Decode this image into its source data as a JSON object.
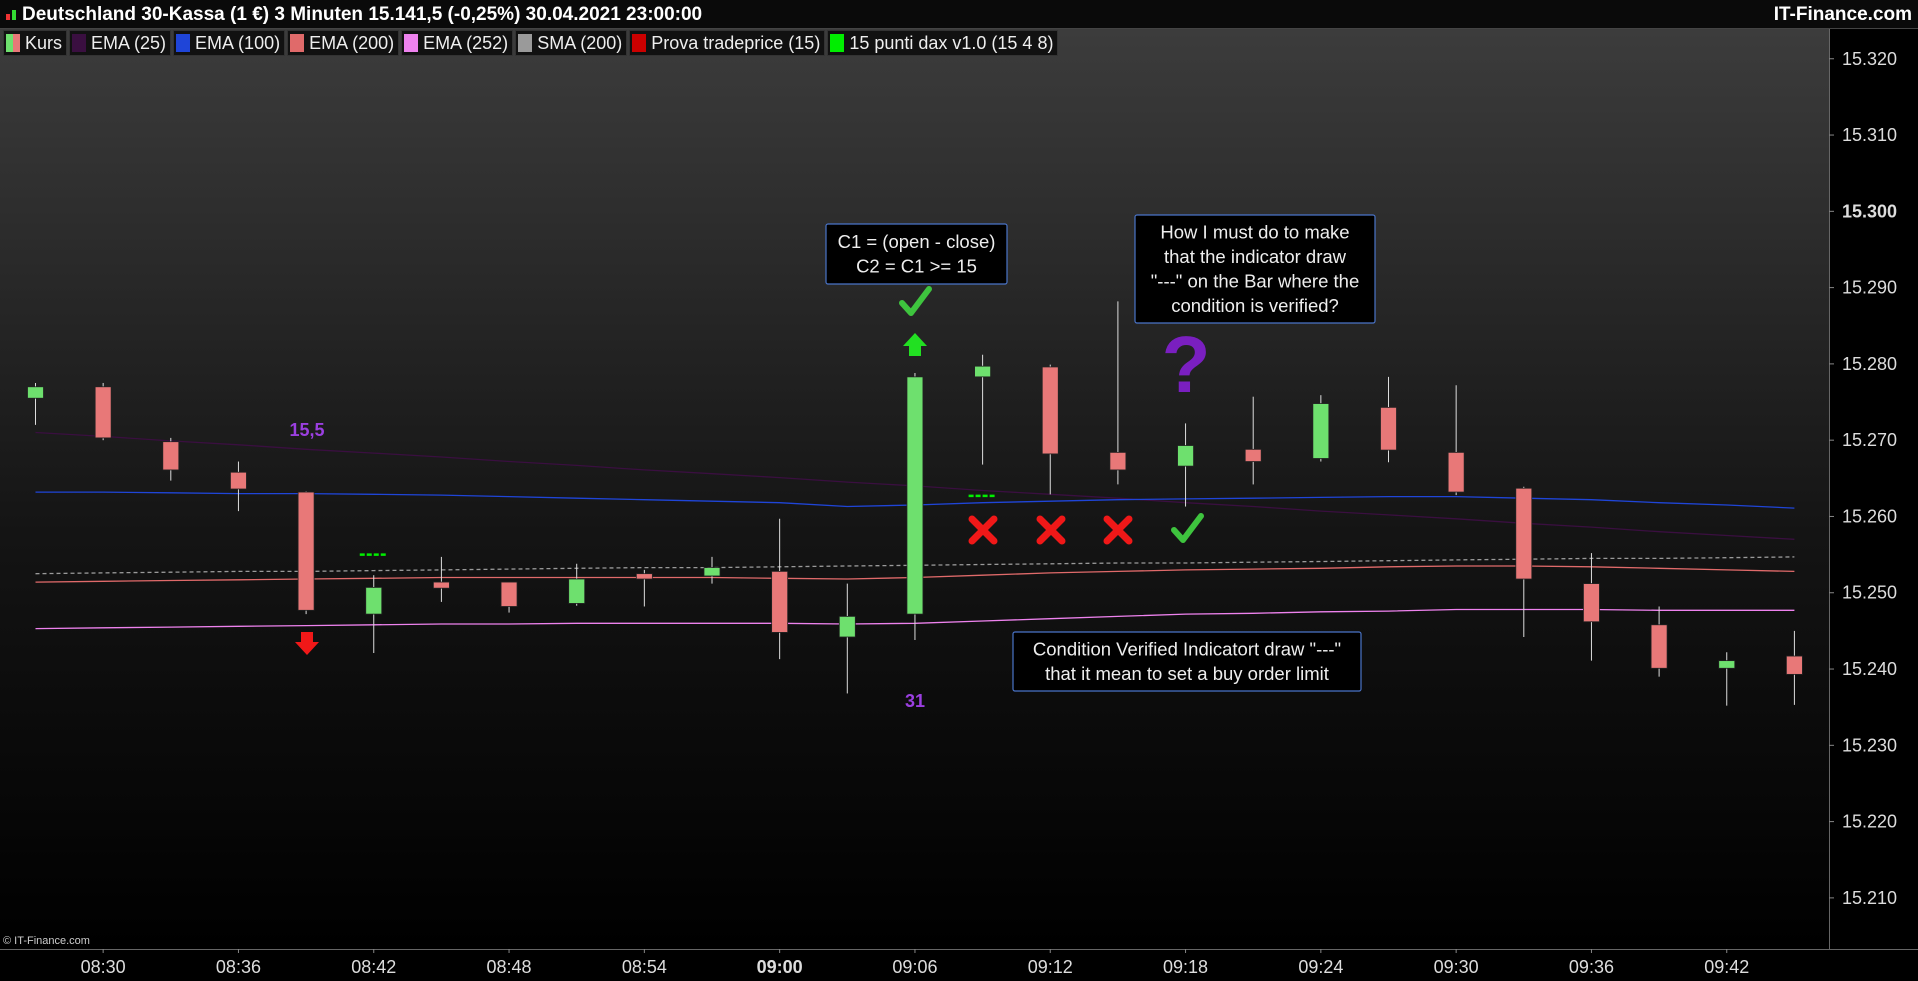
{
  "chart_data": {
    "type": "candlestick",
    "title": "Deutschland 30-Kassa (1 €) 3 Minuten 15.141,5 (-0,25%) 30.04.2021 23:00:00",
    "brand": "IT-Finance.com",
    "copyright": "© IT-Finance.com",
    "kurs": {
      "name": "Kurs",
      "up_color": "#6ee06e",
      "down_color": "#e87878"
    },
    "categories": [
      null,
      "08:30",
      null,
      "08:36",
      null,
      "08:42",
      null,
      "08:48",
      null,
      "08:54",
      null,
      "09:00",
      null,
      "09:06",
      null,
      "09:12",
      null,
      "09:18",
      null,
      "09:24",
      null,
      "09:30",
      null,
      "09:36",
      null,
      "09:42",
      null
    ],
    "open": [
      15275.5,
      15277.0,
      15269.8,
      15265.8,
      15263.2,
      15247.2,
      15251.4,
      15251.4,
      15248.6,
      15252.5,
      15252.2,
      15252.8,
      15244.2,
      15247.2,
      15278.3,
      15279.6,
      15268.4,
      15266.6,
      15268.8,
      15267.6,
      15274.3,
      15268.4,
      15263.7,
      15251.2,
      15245.8,
      15240.1,
      15241.7
    ],
    "high": [
      15277.5,
      15277.5,
      15270.3,
      15267.2,
      15263.3,
      15252.3,
      15254.7,
      15251.4,
      15253.8,
      15253.0,
      15254.7,
      15259.7,
      15251.2,
      15278.8,
      15281.2,
      15279.9,
      15288.2,
      15272.2,
      15275.7,
      15275.9,
      15278.3,
      15277.2,
      15263.9,
      15255.2,
      15248.2,
      15242.2,
      15245.0
    ],
    "low": [
      15272.0,
      15270.0,
      15264.7,
      15260.7,
      15247.2,
      15242.1,
      15248.8,
      15247.4,
      15248.3,
      15248.2,
      15251.2,
      15241.3,
      15236.8,
      15243.8,
      15266.8,
      15262.9,
      15264.2,
      15261.3,
      15264.2,
      15267.2,
      15267.1,
      15262.8,
      15244.2,
      15241.1,
      15239.0,
      15235.2,
      15235.3
    ],
    "close": [
      15277.0,
      15270.3,
      15266.1,
      15263.6,
      15247.7,
      15250.7,
      15250.6,
      15248.2,
      15251.8,
      15251.8,
      15253.3,
      15244.8,
      15246.9,
      15278.3,
      15279.7,
      15268.2,
      15266.1,
      15269.3,
      15267.2,
      15274.8,
      15268.7,
      15263.2,
      15251.8,
      15246.2,
      15240.1,
      15241.1,
      15239.3
    ],
    "series": [
      {
        "name": "EMA (25)",
        "color": "#3a0f40",
        "style": "line",
        "values": [
          15271.0,
          15270.5,
          15269.9,
          15269.4,
          15268.8,
          15268.3,
          15267.8,
          15267.2,
          15266.7,
          15266.1,
          15265.6,
          15265.1,
          15264.5,
          15264.0,
          15263.4,
          15262.9,
          15262.4,
          15261.8,
          15261.3,
          15260.7,
          15260.2,
          15259.7,
          15259.1,
          15258.6,
          15258.0,
          15257.5,
          15257.0
        ]
      },
      {
        "name": "EMA (100)",
        "color": "#1f45d8",
        "style": "line",
        "values": [
          15263.2,
          15263.2,
          15263.1,
          15263.0,
          15263.0,
          15262.9,
          15262.8,
          15262.6,
          15262.4,
          15262.2,
          15262.0,
          15261.8,
          15261.3,
          15261.5,
          15261.8,
          15262.0,
          15262.2,
          15262.3,
          15262.4,
          15262.5,
          15262.6,
          15262.6,
          15262.4,
          15262.2,
          15261.8,
          15261.5,
          15261.1
        ]
      },
      {
        "name": "EMA (200)",
        "color": "#e06a6a",
        "style": "line",
        "values": [
          15251.4,
          15251.5,
          15251.6,
          15251.7,
          15251.8,
          15251.9,
          15252.0,
          15252.0,
          15252.0,
          15252.0,
          15252.0,
          15251.9,
          15251.8,
          15252.0,
          15252.3,
          15252.6,
          15252.8,
          15253.0,
          15253.1,
          15253.2,
          15253.4,
          15253.5,
          15253.5,
          15253.4,
          15253.2,
          15253.0,
          15252.8
        ]
      },
      {
        "name": "EMA (252)",
        "color": "#ee82ee",
        "style": "line",
        "values": [
          15245.3,
          15245.4,
          15245.5,
          15245.6,
          15245.7,
          15245.8,
          15245.9,
          15245.9,
          15246.0,
          15246.0,
          15246.0,
          15246.0,
          15245.9,
          15246.0,
          15246.3,
          15246.6,
          15246.9,
          15247.2,
          15247.3,
          15247.5,
          15247.6,
          15247.8,
          15247.8,
          15247.8,
          15247.7,
          15247.7,
          15247.7
        ]
      },
      {
        "name": "SMA (200)",
        "color": "#9a9a9a",
        "style": "dashed",
        "values": [
          15252.5,
          15252.6,
          15252.7,
          15252.8,
          15252.8,
          15252.9,
          15253.0,
          15253.1,
          15253.2,
          15253.3,
          15253.3,
          15253.4,
          15253.5,
          15253.6,
          15253.7,
          15253.8,
          15253.9,
          15253.9,
          15254.0,
          15254.1,
          15254.2,
          15254.3,
          15254.4,
          15254.5,
          15254.5,
          15254.6,
          15254.7
        ]
      },
      {
        "name": "Prova tradeprice (15)",
        "color": "#cc0000"
      },
      {
        "name": "15 punti dax v1.0 (15 4 8)",
        "color": "#00ee00",
        "style": "tick",
        "values": [
          null,
          null,
          null,
          null,
          null,
          15255.0,
          null,
          null,
          null,
          null,
          null,
          null,
          null,
          null,
          15262.7,
          null,
          null,
          null,
          null,
          null,
          null,
          null,
          null,
          null,
          null,
          null,
          null
        ]
      }
    ],
    "ylim": [
      15203.3,
      15323.9
    ],
    "yticks": [
      {
        "value": 15210,
        "label": "15.210"
      },
      {
        "value": 15220,
        "label": "15.220"
      },
      {
        "value": 15230,
        "label": "15.230"
      },
      {
        "value": 15240,
        "label": "15.240"
      },
      {
        "value": 15250,
        "label": "15.250"
      },
      {
        "value": 15260,
        "label": "15.260"
      },
      {
        "value": 15270,
        "label": "15.270"
      },
      {
        "value": 15280,
        "label": "15.280"
      },
      {
        "value": 15290,
        "label": "15.290"
      },
      {
        "value": 15300,
        "label": "15.300"
      },
      {
        "value": 15310,
        "label": "15.310"
      },
      {
        "value": 15320,
        "label": "15.320"
      }
    ],
    "annotations": {
      "formula": [
        "C1 = (open - close)",
        "C2 = C1 >= 15"
      ],
      "question": [
        "How I must do to make",
        "that the indicator draw",
        "\"---\" on the Bar where the",
        "condition is verified?"
      ],
      "explanation": [
        "Condition Verified Indicatort draw \"---\"",
        "that it mean to set a buy order limit"
      ],
      "label_left": "15,5",
      "label_right": "31"
    }
  }
}
